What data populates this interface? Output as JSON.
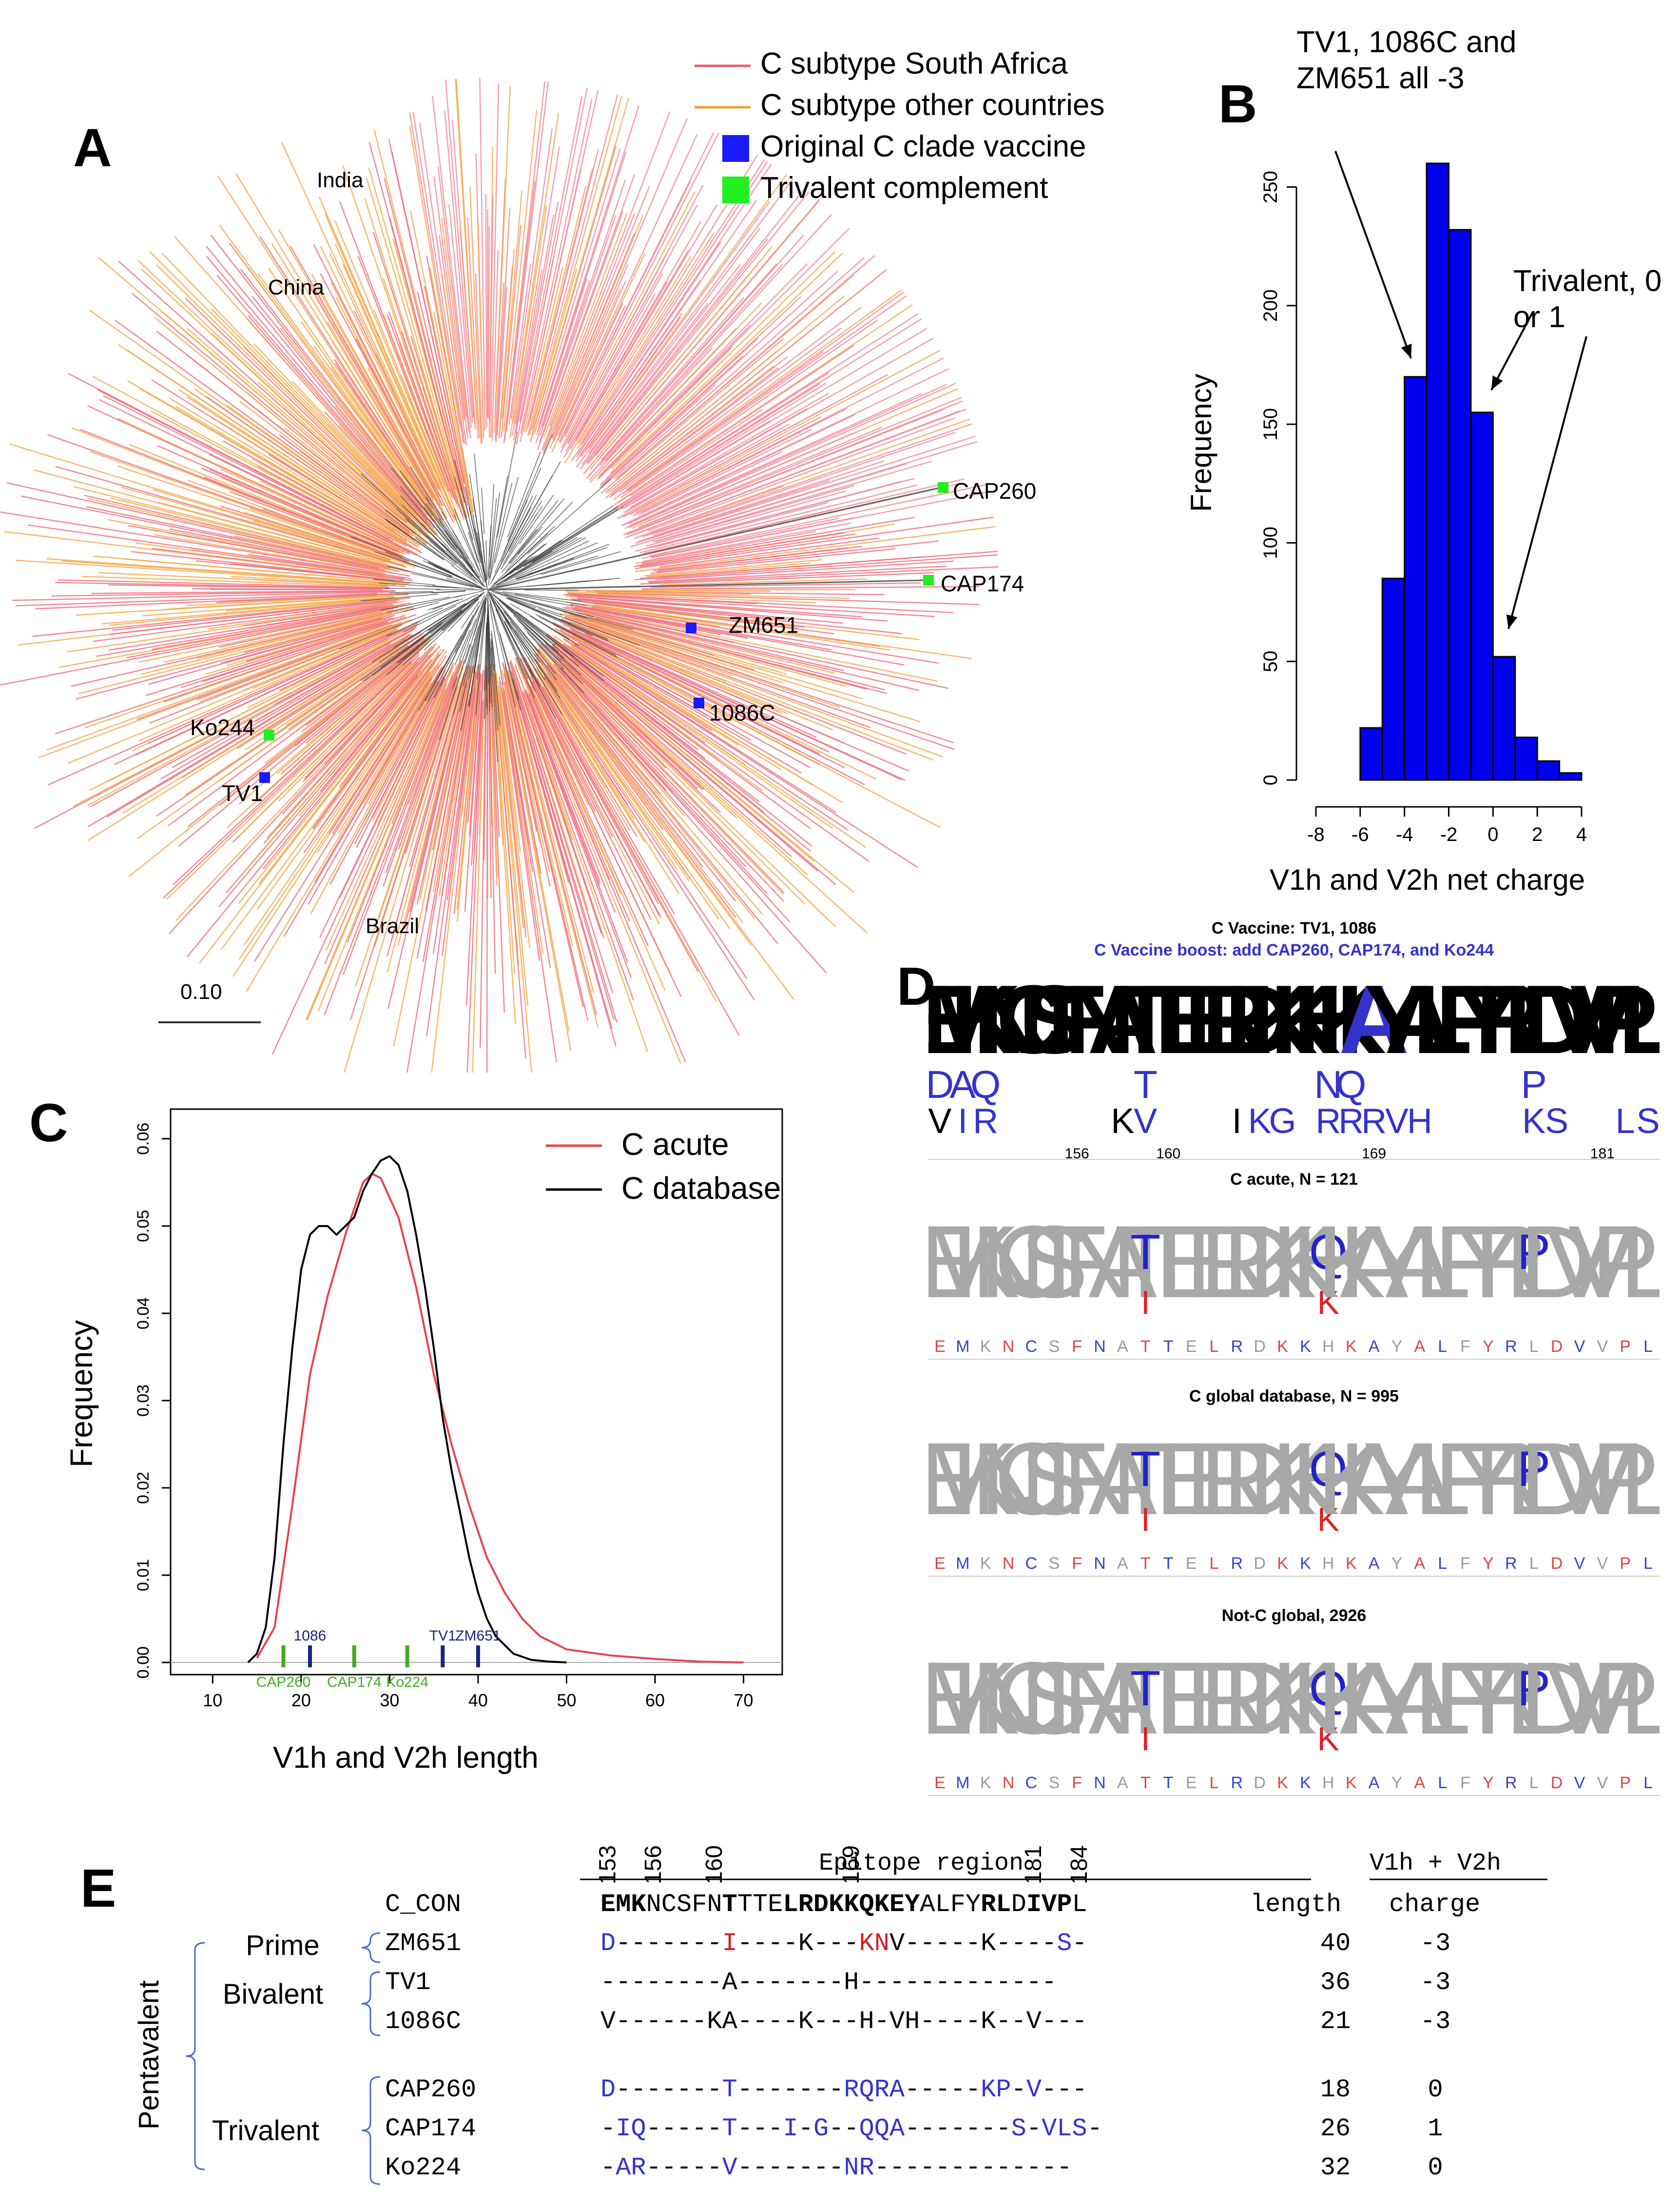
{
  "panels": {
    "A": "A",
    "B": "B",
    "C": "C",
    "D": "D",
    "E": "E"
  },
  "panel_a": {
    "legend": [
      {
        "label": "C subtype South Africa",
        "color": "#e8616e",
        "kind": "line"
      },
      {
        "label": "C subtype other countries",
        "color": "#f0a030",
        "kind": "line"
      },
      {
        "label": "Original C clade vaccine",
        "color": "#1a1aff",
        "kind": "square"
      },
      {
        "label": "Trivalent complement",
        "color": "#22ee22",
        "kind": "square"
      }
    ],
    "regions": [
      "India",
      "China",
      "Brazil"
    ],
    "vaccine_labels": [
      "CAP260",
      "CAP174",
      "ZM651",
      "1086C",
      "Ko244",
      "TV1"
    ],
    "scale_label": "0.10"
  },
  "chart_data": [
    {
      "type": "bar",
      "panel": "B",
      "xlabel": "V1h and V2h net charge",
      "ylabel": "Frequency",
      "bin_edges": [
        -6,
        -5,
        -4,
        -3,
        -2,
        -1,
        0,
        1,
        2,
        3,
        4
      ],
      "values": [
        22,
        85,
        170,
        260,
        232,
        155,
        52,
        18,
        8,
        3
      ],
      "xlim": [
        -8,
        4
      ],
      "ylim": [
        0,
        260
      ],
      "xticks": [
        -8,
        -6,
        -4,
        -2,
        0,
        2,
        4
      ],
      "yticks": [
        0,
        50,
        100,
        150,
        200,
        250
      ],
      "bar_color": "#0000ee",
      "annotations": [
        {
          "text": "TV1, 1086C and ZM651 all -3"
        },
        {
          "text": "Trivalent, 0 or 1"
        }
      ]
    },
    {
      "type": "line",
      "panel": "C",
      "xlabel": "V1h and V2h length",
      "ylabel": "Frequency",
      "xlim": [
        8,
        73
      ],
      "ylim": [
        0,
        0.062
      ],
      "xticks": [
        10,
        20,
        30,
        40,
        50,
        60,
        70
      ],
      "yticks": [
        0.0,
        0.01,
        0.02,
        0.03,
        0.04,
        0.05,
        0.06
      ],
      "ytick_labels": [
        "0.00",
        "0.01",
        "0.02",
        "0.03",
        "0.04",
        "0.05",
        "0.06"
      ],
      "legend_position": "top-right",
      "series": [
        {
          "name": "C acute",
          "color": "#e8404e",
          "x": [
            15,
            17,
            19,
            21,
            23,
            25,
            27,
            28,
            29,
            31,
            33,
            35,
            37,
            39,
            41,
            43,
            45,
            47,
            50,
            55,
            60,
            65,
            70
          ],
          "y": [
            0.0005,
            0.004,
            0.018,
            0.033,
            0.042,
            0.049,
            0.055,
            0.056,
            0.0555,
            0.051,
            0.043,
            0.033,
            0.025,
            0.018,
            0.012,
            0.008,
            0.005,
            0.003,
            0.0015,
            0.0008,
            0.0004,
            0.0001,
            0.0
          ]
        },
        {
          "name": "C database",
          "color": "#000000",
          "x": [
            14,
            15,
            16,
            17,
            18,
            19,
            20,
            21,
            22,
            23,
            24,
            25,
            26,
            27,
            28,
            29,
            30,
            31,
            32,
            33,
            34,
            35,
            36,
            37,
            38,
            39,
            40,
            41,
            42,
            44,
            46,
            48,
            50
          ],
          "y": [
            0.0,
            0.001,
            0.004,
            0.012,
            0.025,
            0.036,
            0.045,
            0.049,
            0.05,
            0.05,
            0.049,
            0.05,
            0.051,
            0.054,
            0.056,
            0.0575,
            0.058,
            0.057,
            0.054,
            0.049,
            0.043,
            0.036,
            0.028,
            0.022,
            0.017,
            0.012,
            0.008,
            0.005,
            0.003,
            0.001,
            0.0003,
            0.0001,
            0.0
          ]
        }
      ],
      "markers": [
        {
          "label": "CAP260",
          "x": 18,
          "color": "#44aa22"
        },
        {
          "label": "1086",
          "x": 21,
          "color": "#1a237e"
        },
        {
          "label": "CAP174",
          "x": 26,
          "color": "#44aa22"
        },
        {
          "label": "Ko224",
          "x": 32,
          "color": "#44aa22"
        },
        {
          "label": "TV1",
          "x": 36,
          "color": "#1a237e"
        },
        {
          "label": "ZM651",
          "x": 40,
          "color": "#1a237e"
        }
      ]
    }
  ],
  "panel_d": {
    "title1": "C Vaccine: TV1, 1086",
    "title2": "C Vaccine boost: add CAP260, CAP174, and Ko244",
    "title2_color": "#3333cc",
    "sequence": "EMKNCSFNATTELRDKKHKAYALFYRLDVVPL",
    "vaccine_row2": [
      "D",
      "A",
      "Q",
      "",
      "",
      "",
      "",
      "",
      "",
      "T",
      "",
      "",
      "",
      "",
      "",
      "",
      "",
      "N",
      "Q",
      "",
      "",
      "",
      "",
      "",
      "",
      "",
      "P",
      "",
      "",
      "",
      "",
      ""
    ],
    "vaccine_row3": [
      "V",
      "I",
      "R",
      "",
      "",
      "",
      "",
      "",
      "K",
      "V",
      "",
      "",
      "",
      "I",
      "K",
      "G",
      "",
      "R",
      "R",
      "R",
      "V",
      "H",
      "",
      "",
      "",
      "",
      "K",
      "S",
      "",
      "",
      "L",
      "S"
    ],
    "positions": [
      "156",
      "160",
      "169",
      "181"
    ],
    "logos": [
      {
        "title": "C acute, N = 121"
      },
      {
        "title": "C global database, N = 995"
      },
      {
        "title": "Not-C global, 2926"
      }
    ]
  },
  "panel_e": {
    "positions": [
      "153",
      "156",
      "160",
      "169",
      "181",
      "184"
    ],
    "epitope_label": "Epitope region",
    "v1v2_label": "V1h + V2h",
    "length_label": "length",
    "charge_label": "charge",
    "con_name": "C_CON",
    "con_parts": [
      {
        "t": "EMK",
        "b": true
      },
      {
        "t": "NCSFN",
        "b": false
      },
      {
        "t": "T",
        "b": true
      },
      {
        "t": "TTE",
        "b": false
      },
      {
        "t": "LRDKKQKEY",
        "b": true
      },
      {
        "t": "ALFY",
        "b": false
      },
      {
        "t": "RL",
        "b": true
      },
      {
        "t": "D",
        "b": false
      },
      {
        "t": "IVP",
        "b": true
      },
      {
        "t": "L",
        "b": false
      }
    ],
    "groups": {
      "prime": "Prime",
      "bivalent": "Bivalent",
      "trivalent": "Trivalent",
      "pentavalent": "Pentavalent"
    },
    "rows": [
      {
        "name": "ZM651",
        "length": "40",
        "charge": "-3",
        "parts": [
          {
            "t": "D",
            "c": "#3333cc"
          },
          {
            "t": "-------",
            "c": "#000"
          },
          {
            "t": "I",
            "c": "#cc2222"
          },
          {
            "t": "----K---",
            "c": "#000"
          },
          {
            "t": "KN",
            "c": "#cc2222"
          },
          {
            "t": "V-----K----",
            "c": "#000"
          },
          {
            "t": "S",
            "c": "#3333cc"
          },
          {
            "t": "-",
            "c": "#000"
          }
        ]
      },
      {
        "name": "TV1",
        "length": "36",
        "charge": "-3",
        "parts": [
          {
            "t": "--------A-------H-------------",
            "c": "#000"
          }
        ]
      },
      {
        "name": "1086C",
        "length": "21",
        "charge": "-3",
        "parts": [
          {
            "t": "V------KA----K---H-VH----K--V---",
            "c": "#000"
          }
        ]
      },
      {
        "name": "CAP260",
        "length": "18",
        "charge": "0",
        "parts": [
          {
            "t": "D",
            "c": "#3333cc"
          },
          {
            "t": "-------",
            "c": "#000"
          },
          {
            "t": "T",
            "c": "#3333cc"
          },
          {
            "t": "-------",
            "c": "#000"
          },
          {
            "t": "RQRA",
            "c": "#3333cc"
          },
          {
            "t": "-----",
            "c": "#000"
          },
          {
            "t": "KP",
            "c": "#3333cc"
          },
          {
            "t": "-",
            "c": "#000"
          },
          {
            "t": "V",
            "c": "#3333cc"
          },
          {
            "t": "---",
            "c": "#000"
          }
        ]
      },
      {
        "name": "CAP174",
        "length": "26",
        "charge": "1",
        "parts": [
          {
            "t": "-",
            "c": "#000"
          },
          {
            "t": "IQ",
            "c": "#3333cc"
          },
          {
            "t": "-----",
            "c": "#000"
          },
          {
            "t": "T",
            "c": "#3333cc"
          },
          {
            "t": "---",
            "c": "#000"
          },
          {
            "t": "I",
            "c": "#3333cc"
          },
          {
            "t": "-",
            "c": "#000"
          },
          {
            "t": "G",
            "c": "#3333cc"
          },
          {
            "t": "--",
            "c": "#000"
          },
          {
            "t": "QQA",
            "c": "#3333cc"
          },
          {
            "t": "-------",
            "c": "#000"
          },
          {
            "t": "S",
            "c": "#3333cc"
          },
          {
            "t": "-",
            "c": "#000"
          },
          {
            "t": "VLS",
            "c": "#3333cc"
          },
          {
            "t": "-",
            "c": "#000"
          }
        ]
      },
      {
        "name": "Ko224",
        "length": "32",
        "charge": "0",
        "parts": [
          {
            "t": "-",
            "c": "#000"
          },
          {
            "t": "AR",
            "c": "#3333cc"
          },
          {
            "t": "-----",
            "c": "#000"
          },
          {
            "t": "V",
            "c": "#3333cc"
          },
          {
            "t": "-------",
            "c": "#000"
          },
          {
            "t": "NR",
            "c": "#3333cc"
          },
          {
            "t": "-------------",
            "c": "#000"
          }
        ]
      }
    ]
  }
}
